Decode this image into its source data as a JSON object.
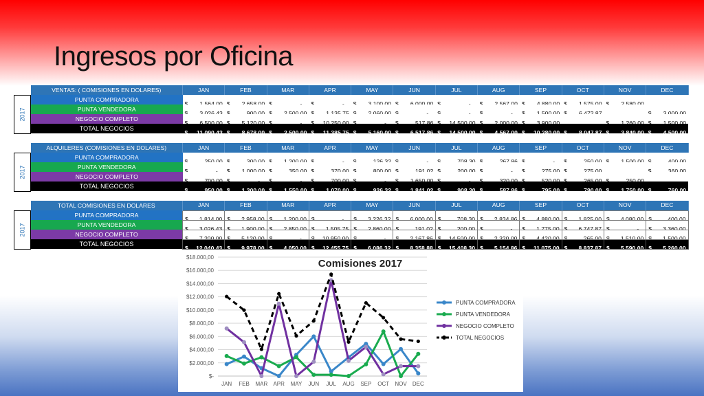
{
  "title": "Ingresos por Oficina",
  "year": "2017",
  "months": [
    "JAN",
    "FEB",
    "MAR",
    "APR",
    "MAY",
    "JUN",
    "JUL",
    "AUG",
    "SEP",
    "OCT",
    "NOV",
    "DEC"
  ],
  "row_labels": [
    "PUNTA COMPRADORA",
    "PUNTA VENDEDORA",
    "NEGOCIO COMPLETO",
    "TOTAL NEGOCIOS"
  ],
  "tables": [
    {
      "header": "VENTAS: ( COMISIONES EN DOLARES)",
      "rows": [
        [
          "1.564,00",
          "2.658,00",
          "-",
          "-",
          "3.100,00",
          "6.000,00",
          "-",
          "2.567,00",
          "4.880,00",
          "1.575,00",
          "2.580,00",
          ""
        ],
        [
          "3.026,43",
          "900,00",
          "2.500,00",
          "1.135,75",
          "2.060,00",
          "-",
          "-",
          "-",
          "1.500,00",
          "6.472,87",
          "",
          "3.000,00"
        ],
        [
          "6.500,00",
          "5.120,00",
          "-",
          "10.250,00",
          "-",
          "517,86",
          "14.500,00",
          "2.000,00",
          "3.900,00",
          "",
          "1.260,00",
          "1.500,00"
        ],
        [
          "11.090,43",
          "8.678,00",
          "2.500,00",
          "11.385,75",
          "5.160,00",
          "6.517,86",
          "14.500,00",
          "4.567,00",
          "10.280,00",
          "8.047,87",
          "3.840,00",
          "4.500,00"
        ]
      ]
    },
    {
      "header": "ALQUILERES (COMISIONES EN DOLARES)",
      "rows": [
        [
          "250,00",
          "300,00",
          "1.200,00",
          "-",
          "126,32",
          "-",
          "708,30",
          "267,86",
          "-",
          "250,00",
          "1.500,00",
          "400,00"
        ],
        [
          "-",
          "1.000,00",
          "350,00",
          "370,00",
          "800,00",
          "191,02",
          "200,00",
          "-",
          "275,00",
          "275,00",
          "",
          "360,00"
        ],
        [
          "700,00",
          "-",
          "-",
          "700,00",
          "-",
          "1.650,00",
          "-",
          "320,00",
          "520,00",
          "265,00",
          "250,00",
          ""
        ],
        [
          "950,00",
          "1.300,00",
          "1.550,00",
          "1.070,00",
          "926,32",
          "1.841,02",
          "908,30",
          "587,86",
          "795,00",
          "790,00",
          "1.750,00",
          "760,00"
        ]
      ]
    },
    {
      "header": "TOTAL COMISIONES EN DOLARES",
      "rows": [
        [
          "1.814,00",
          "2.958,00",
          "1.200,00",
          "-",
          "3.226,32",
          "6.000,00",
          "708,30",
          "2.834,86",
          "4.880,00",
          "1.825,00",
          "4.080,00",
          "400,00"
        ],
        [
          "3.026,43",
          "1.900,00",
          "2.850,00",
          "1.505,75",
          "2.860,00",
          "191,02",
          "200,00",
          "-",
          "1.775,00",
          "6.747,87",
          "-",
          "3.360,00"
        ],
        [
          "7.200,00",
          "5.120,00",
          "-",
          "10.950,00",
          "-",
          "2.167,86",
          "14.500,00",
          "2.320,00",
          "4.420,00",
          "265,00",
          "1.510,00",
          "1.500,00"
        ],
        [
          "12.040,43",
          "9.978,00",
          "4.050,00",
          "12.455,75",
          "6.086,32",
          "8.358,88",
          "15.408,30",
          "5.154,86",
          "11.075,00",
          "8.837,87",
          "5.590,00",
          "5.260,00"
        ]
      ]
    }
  ],
  "colors": {
    "compradora": "#2e75b6",
    "vendedora": "#17a84f",
    "completo": "#7030a0",
    "total": "#000000"
  },
  "chart_data": {
    "type": "line",
    "title": "Comisiones 2017",
    "categories": [
      "JAN",
      "FEB",
      "MAR",
      "APR",
      "MAY",
      "JUN",
      "JUL",
      "AUG",
      "SEP",
      "OCT",
      "NOV",
      "DEC"
    ],
    "y_ticks": [
      "$-",
      "$2.000,00",
      "$4.000,00",
      "$6.000,00",
      "$8.000,00",
      "$10.000,00",
      "$12.000,00",
      "$14.000,00",
      "$16.000,00",
      "$18.000,00"
    ],
    "ylim": [
      0,
      18000
    ],
    "legend_position": "right",
    "series": [
      {
        "name": "PUNTA COMPRADORA",
        "color": "#3a87c9",
        "dashed": false,
        "values": [
          1814,
          2958,
          1200,
          0,
          3226.32,
          6000,
          708.3,
          2834.86,
          4880,
          1825,
          4080,
          400
        ]
      },
      {
        "name": "PUNTA VENDEDORA",
        "color": "#1aab4f",
        "dashed": false,
        "values": [
          3026.43,
          1900,
          2850,
          1505.75,
          2860,
          191.02,
          200,
          0,
          1775,
          6747.87,
          0,
          3360
        ]
      },
      {
        "name": "NEGOCIO COMPLETO",
        "color": "#7030a0",
        "dashed": false,
        "values": [
          7200,
          5120,
          0,
          10950,
          0,
          2167.86,
          14500,
          2320,
          4420,
          265,
          1510,
          1500
        ]
      },
      {
        "name": "TOTAL NEGOCIOS",
        "color": "#000000",
        "dashed": true,
        "values": [
          12040.43,
          9978,
          4050,
          12455.75,
          6086.32,
          8358.88,
          15408.3,
          5154.86,
          11075,
          8837.87,
          5590,
          5260
        ]
      }
    ]
  }
}
